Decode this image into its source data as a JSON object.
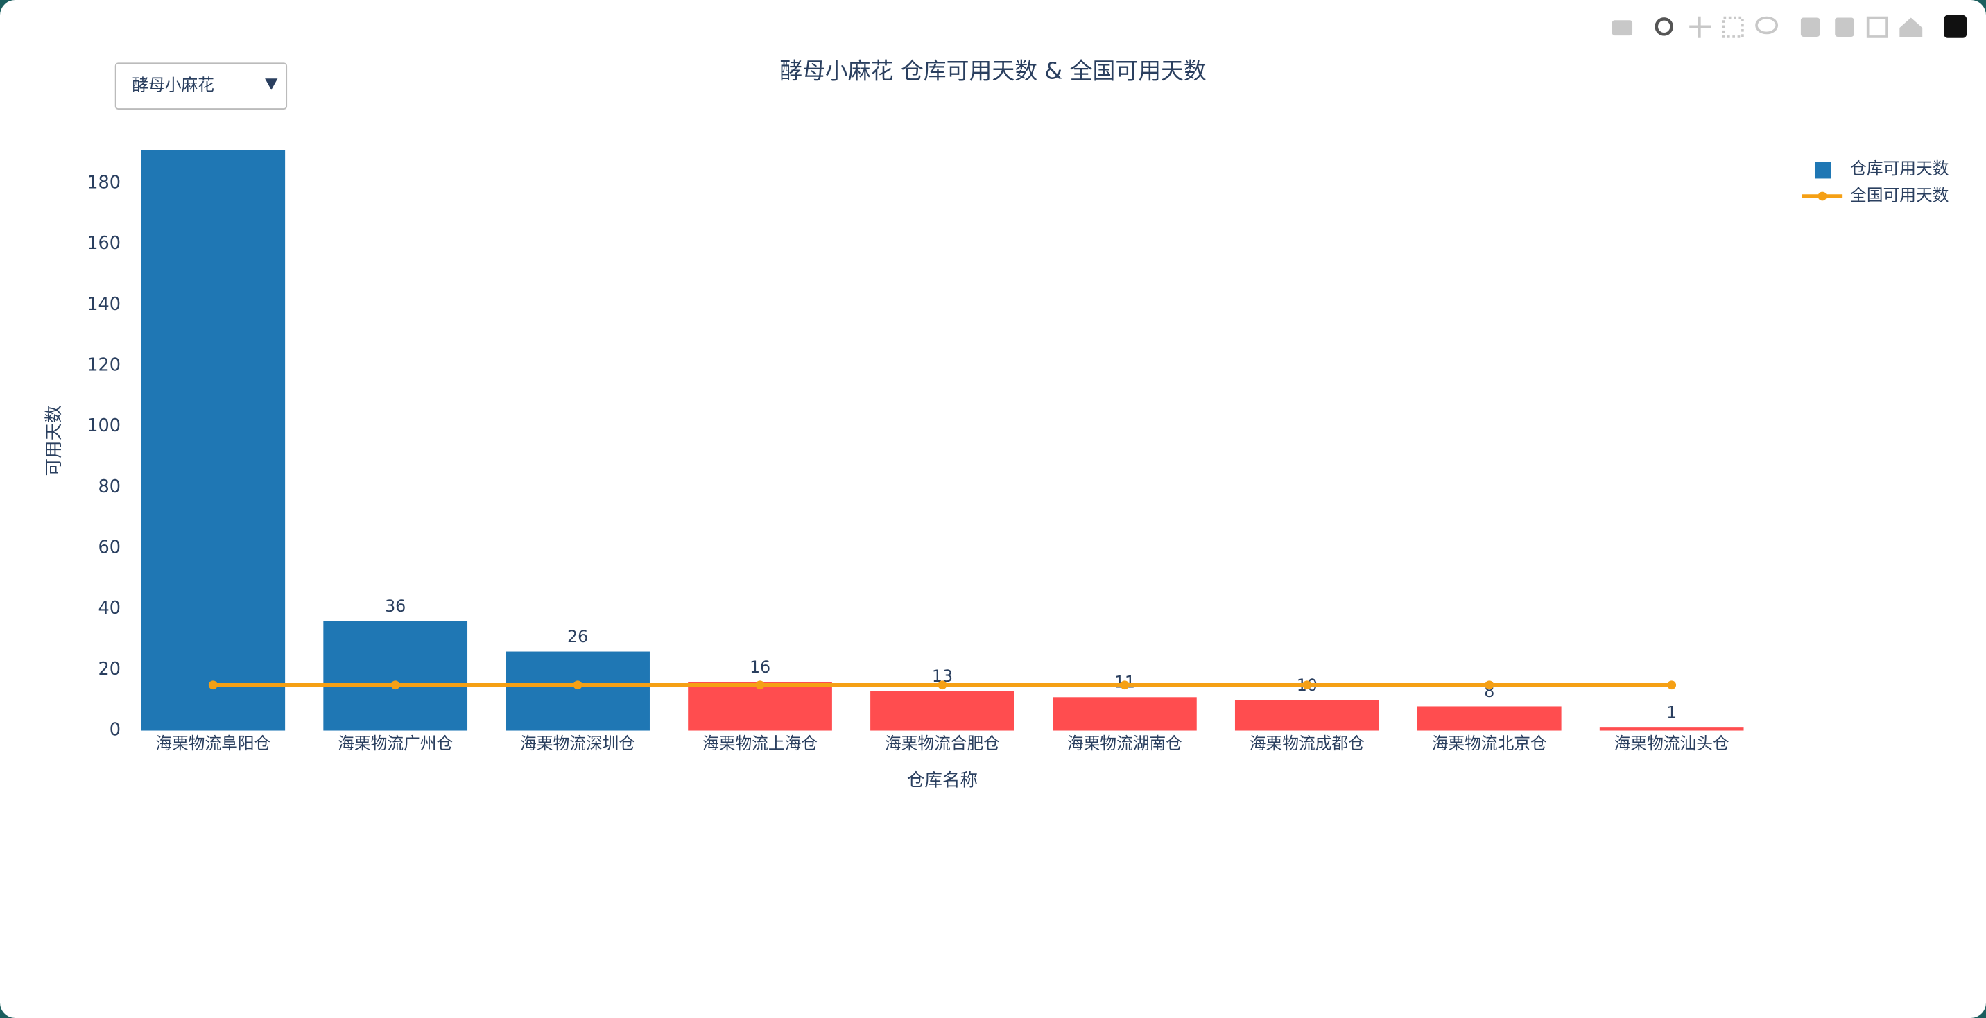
{
  "chart_data": {
    "type": "bar",
    "title": "酵母小麻花 仓库可用天数 & 全国可用天数",
    "dropdown": "酵母小麻花",
    "x_label": "仓库名称",
    "y_label": "可用天数",
    "categories": [
      "海栗物流阜阳仓",
      "海栗物流广州仓",
      "海栗物流深圳仓",
      "海栗物流上海仓",
      "海栗物流合肥仓",
      "海栗物流湖南仓",
      "海栗物流成都仓",
      "海栗物流北京仓",
      "海栗物流汕头仓"
    ],
    "series": [
      {
        "name": "仓库可用天数",
        "type": "bar",
        "color": "#1f77b4",
        "colors": [
          "#1f77b4",
          "#1f77b4",
          "#1f77b4",
          "#ff4d4f",
          "#ff4d4f",
          "#ff4d4f",
          "#ff4d4f",
          "#ff4d4f",
          "#ff4d4f"
        ],
        "values": [
          191,
          36,
          26,
          16,
          13,
          11,
          10,
          8,
          1
        ],
        "value_labels": [
          null,
          "36",
          "26",
          "16",
          "13",
          "11",
          "10",
          "8",
          "1"
        ]
      },
      {
        "name": "全国可用天数",
        "type": "line",
        "color": "#f5a015",
        "values": [
          15,
          15,
          15,
          15,
          15,
          15,
          15,
          15,
          15
        ]
      }
    ],
    "ylim": [
      0,
      192
    ],
    "yticks": [
      0,
      20,
      40,
      60,
      80,
      100,
      120,
      140,
      160,
      180
    ],
    "legend": "top-right"
  }
}
